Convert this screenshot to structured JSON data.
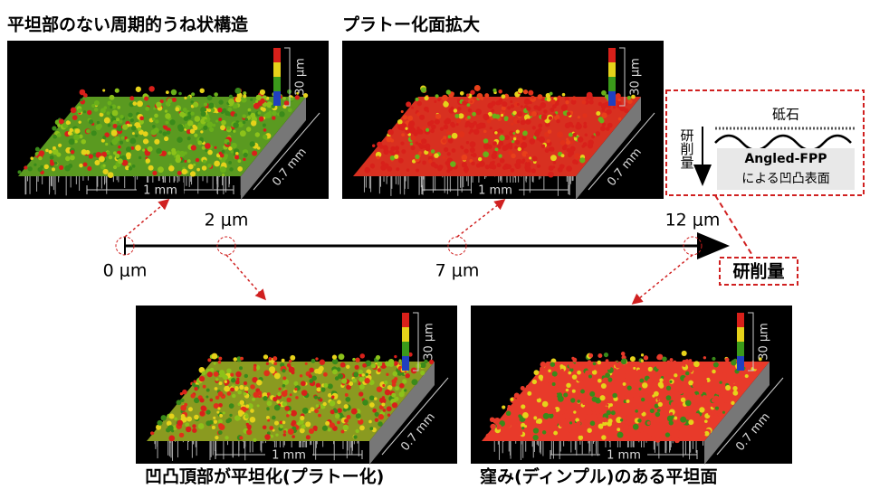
{
  "panels": [
    {
      "title": "平坦部のない周期的うね状構造",
      "z_scale": "30 μm",
      "depth_scale": "0.7 mm",
      "width_scale": "1 mm"
    },
    {
      "title": "プラトー化面拡大",
      "z_scale": "30 μm",
      "depth_scale": "0.7 mm",
      "width_scale": "1 mm"
    },
    {
      "title": "凹凸頂部が平坦化(プラトー化)",
      "z_scale": "30 μm",
      "depth_scale": "0.7 mm",
      "width_scale": "1 mm"
    },
    {
      "title": "窪み(ディンプル)のある平坦面",
      "z_scale": "30 μm",
      "depth_scale": "0.7 mm",
      "width_scale": "1 mm"
    }
  ],
  "axis": {
    "points": [
      {
        "label": "0 μm"
      },
      {
        "label": "2 μm"
      },
      {
        "label": "7 μm"
      },
      {
        "label": "12 μm"
      }
    ],
    "label": "研削量"
  },
  "inset": {
    "tool": "砥石",
    "direction": "研削量",
    "line1": "Angled-FPP",
    "line2": "による凹凸表面"
  }
}
